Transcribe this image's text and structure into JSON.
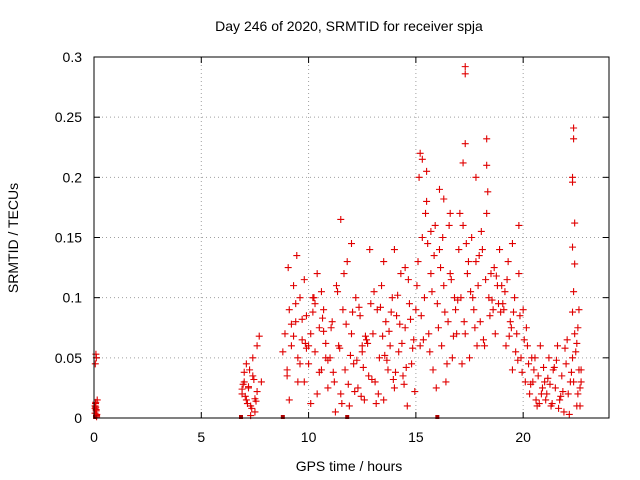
{
  "chart_data": {
    "type": "scatter",
    "title": "Day 246 of 2020, SRMTID for receiver spja",
    "xlabel": "GPS time / hours",
    "ylabel": "SRMTID / TECUs",
    "xlim": [
      0,
      24
    ],
    "ylim": [
      0,
      0.3
    ],
    "x_ticks": [
      0,
      5,
      10,
      15,
      20
    ],
    "x_tick_labels": [
      "0",
      "5",
      "10",
      "15",
      "20"
    ],
    "y_ticks": [
      0,
      0.05,
      0.1,
      0.15,
      0.2,
      0.25,
      0.3
    ],
    "y_tick_labels": [
      "0",
      "0.05",
      "0.1",
      "0.15",
      "0.2",
      "0.25",
      "0.3"
    ],
    "grid": true,
    "marker": "+",
    "color": "#e00000",
    "series": [
      {
        "name": "SRMTID",
        "x": [
          0.05,
          0.05,
          0.08,
          0.1,
          0.12,
          0.06,
          0.09,
          0.11,
          0.15,
          0.07,
          0.1,
          0.13,
          0.08,
          0.12,
          0.05,
          6.9,
          7.0,
          7.1,
          7.2,
          7.3,
          7.4,
          7.5,
          7.6,
          6.95,
          7.05,
          7.15,
          7.25,
          7.35,
          7.45,
          7.55,
          6.9,
          7.1,
          7.3,
          7.5,
          7.0,
          7.2,
          7.4,
          7.6,
          7.7,
          7.8,
          8.8,
          8.9,
          9.0,
          9.1,
          9.2,
          9.3,
          9.4,
          9.5,
          9.6,
          9.7,
          9.8,
          9.9,
          10.0,
          10.1,
          10.2,
          10.3,
          10.4,
          10.5,
          10.6,
          10.7,
          10.8,
          10.9,
          9.0,
          9.2,
          9.4,
          9.6,
          9.8,
          10.0,
          10.2,
          10.4,
          10.6,
          10.8,
          9.1,
          9.3,
          9.5,
          9.7,
          9.9,
          10.1,
          10.3,
          10.5,
          10.7,
          10.9,
          9.05,
          9.45,
          9.85,
          10.25,
          10.65,
          11.0,
          11.1,
          11.2,
          11.3,
          11.4,
          11.5,
          11.6,
          11.7,
          11.8,
          11.9,
          12.0,
          12.1,
          12.2,
          12.3,
          12.4,
          12.5,
          12.6,
          12.7,
          12.8,
          12.9,
          11.05,
          11.25,
          11.45,
          11.65,
          11.85,
          12.05,
          12.25,
          12.45,
          12.65,
          12.85,
          11.15,
          11.35,
          11.55,
          11.75,
          11.95,
          12.15,
          12.35,
          12.55,
          12.75,
          12.95,
          11.5,
          12.0,
          12.5,
          13.0,
          13.1,
          13.2,
          13.3,
          13.4,
          13.5,
          13.6,
          13.7,
          13.8,
          13.9,
          14.0,
          14.1,
          14.2,
          14.3,
          14.4,
          14.5,
          14.6,
          14.7,
          14.8,
          14.9,
          13.05,
          13.25,
          13.45,
          13.65,
          13.85,
          14.05,
          14.25,
          14.45,
          14.65,
          14.85,
          13.15,
          13.35,
          13.55,
          13.75,
          13.95,
          14.15,
          14.35,
          14.55,
          14.75,
          14.95,
          13.5,
          14.0,
          14.5,
          15.0,
          15.1,
          15.2,
          15.3,
          15.4,
          15.5,
          15.6,
          15.7,
          15.8,
          15.9,
          16.0,
          16.1,
          16.2,
          16.3,
          16.4,
          16.5,
          16.6,
          16.7,
          16.8,
          16.9,
          15.05,
          15.25,
          15.45,
          15.65,
          15.85,
          16.05,
          16.25,
          16.45,
          16.65,
          16.85,
          15.15,
          15.35,
          15.55,
          15.75,
          15.95,
          16.15,
          16.35,
          16.55,
          16.75,
          16.95,
          15.2,
          15.5,
          16.1,
          16.6,
          15.3,
          15.7,
          16.3,
          17.0,
          17.1,
          17.2,
          17.3,
          17.4,
          17.5,
          17.6,
          17.7,
          17.8,
          17.9,
          18.0,
          18.1,
          18.2,
          18.3,
          18.4,
          18.5,
          18.6,
          18.7,
          18.8,
          18.9,
          17.05,
          17.25,
          17.45,
          17.65,
          17.85,
          18.05,
          18.25,
          18.45,
          18.65,
          18.85,
          17.15,
          17.35,
          17.55,
          17.75,
          17.95,
          18.15,
          18.35,
          18.55,
          18.75,
          18.95,
          17.3,
          17.3,
          17.3,
          18.3,
          18.3,
          17.2,
          17.8,
          19.0,
          19.1,
          19.2,
          19.3,
          19.4,
          19.5,
          19.6,
          19.7,
          19.8,
          19.9,
          20.0,
          20.1,
          20.2,
          20.3,
          20.4,
          20.5,
          20.6,
          20.7,
          20.8,
          20.9,
          19.05,
          19.25,
          19.45,
          19.65,
          19.85,
          20.05,
          20.25,
          20.45,
          20.65,
          20.85,
          19.15,
          19.35,
          19.55,
          19.75,
          19.95,
          20.15,
          20.35,
          20.55,
          20.75,
          20.95,
          19.5,
          19.8,
          21.0,
          21.1,
          21.2,
          21.3,
          21.4,
          21.5,
          21.6,
          21.7,
          21.8,
          21.9,
          22.0,
          22.1,
          22.2,
          22.3,
          22.4,
          22.5,
          22.6,
          22.7,
          21.05,
          21.25,
          21.45,
          21.65,
          21.85,
          22.05,
          22.25,
          22.45,
          22.65,
          21.15,
          21.35,
          21.55,
          21.75,
          21.95,
          22.15,
          22.35,
          22.55,
          22.3,
          22.3,
          22.35,
          22.35,
          22.4,
          22.3,
          22.4,
          22.35,
          22.3,
          22.5,
          22.6,
          22.7,
          22.55,
          22.65
        ],
        "y": [
          0.004,
          0.01,
          0.013,
          0.007,
          0.002,
          0.045,
          0.053,
          0.05,
          0.015,
          0.012,
          0.006,
          0.003,
          0.009,
          0.001,
          0.008,
          0.02,
          0.03,
          0.015,
          0.025,
          0.01,
          0.035,
          0.005,
          0.022,
          0.028,
          0.018,
          0.012,
          0.04,
          0.008,
          0.032,
          0.014,
          0.024,
          0.045,
          0.002,
          0.016,
          0.038,
          0.026,
          0.05,
          0.06,
          0.068,
          0.03,
          0.055,
          0.07,
          0.04,
          0.09,
          0.06,
          0.11,
          0.08,
          0.05,
          0.1,
          0.065,
          0.03,
          0.085,
          0.045,
          0.07,
          0.1,
          0.055,
          0.12,
          0.075,
          0.04,
          0.09,
          0.062,
          0.025,
          0.035,
          0.078,
          0.095,
          0.045,
          0.115,
          0.06,
          0.088,
          0.02,
          0.105,
          0.05,
          0.015,
          0.068,
          0.03,
          0.082,
          0.058,
          0.012,
          0.095,
          0.038,
          0.072,
          0.048,
          0.125,
          0.135,
          0.062,
          0.1,
          0.083,
          0.05,
          0.08,
          0.03,
          0.11,
          0.06,
          0.02,
          0.09,
          0.04,
          0.13,
          0.01,
          0.07,
          0.045,
          0.1,
          0.025,
          0.085,
          0.055,
          0.015,
          0.065,
          0.035,
          0.095,
          0.075,
          0.005,
          0.058,
          0.12,
          0.028,
          0.088,
          0.048,
          0.018,
          0.068,
          0.14,
          0.038,
          0.105,
          0.012,
          0.078,
          0.052,
          0.022,
          0.092,
          0.042,
          0.062,
          0.032,
          0.165,
          0.145,
          0.06,
          0.07,
          0.03,
          0.09,
          0.05,
          0.11,
          0.015,
          0.08,
          0.04,
          0.06,
          0.1,
          0.025,
          0.085,
          0.055,
          0.12,
          0.035,
          0.075,
          0.01,
          0.095,
          0.045,
          0.065,
          0.105,
          0.02,
          0.068,
          0.048,
          0.088,
          0.038,
          0.078,
          0.028,
          0.115,
          0.058,
          0.012,
          0.092,
          0.052,
          0.072,
          0.032,
          0.102,
          0.062,
          0.042,
          0.082,
          0.022,
          0.13,
          0.14,
          0.125,
          0.09,
          0.13,
          0.06,
          0.15,
          0.1,
          0.18,
          0.07,
          0.12,
          0.04,
          0.16,
          0.095,
          0.14,
          0.06,
          0.11,
          0.03,
          0.08,
          0.12,
          0.05,
          0.1,
          0.07,
          0.11,
          0.085,
          0.17,
          0.055,
          0.135,
          0.075,
          0.15,
          0.045,
          0.115,
          0.09,
          0.2,
          0.065,
          0.145,
          0.105,
          0.025,
          0.125,
          0.088,
          0.16,
          0.068,
          0.098,
          0.22,
          0.205,
          0.19,
          0.17,
          0.215,
          0.155,
          0.182,
          0.14,
          0.1,
          0.16,
          0.07,
          0.12,
          0.05,
          0.15,
          0.09,
          0.13,
          0.11,
          0.08,
          0.14,
          0.06,
          0.17,
          0.1,
          0.12,
          0.09,
          0.07,
          0.11,
          0.14,
          0.17,
          0.08,
          0.13,
          0.1,
          0.06,
          0.155,
          0.115,
          0.085,
          0.125,
          0.095,
          0.045,
          0.145,
          0.105,
          0.075,
          0.135,
          0.065,
          0.188,
          0.098,
          0.118,
          0.088,
          0.228,
          0.292,
          0.286,
          0.232,
          0.21,
          0.212,
          0.2,
          0.11,
          0.09,
          0.06,
          0.13,
          0.08,
          0.04,
          0.1,
          0.07,
          0.12,
          0.05,
          0.09,
          0.03,
          0.06,
          0.02,
          0.05,
          0.04,
          0.015,
          0.035,
          0.06,
          0.025,
          0.095,
          0.115,
          0.075,
          0.055,
          0.085,
          0.065,
          0.045,
          0.03,
          0.01,
          0.02,
          0.105,
          0.068,
          0.088,
          0.048,
          0.038,
          0.075,
          0.028,
          0.05,
          0.012,
          0.042,
          0.145,
          0.16,
          0.03,
          0.02,
          0.05,
          0.01,
          0.04,
          0.025,
          0.06,
          0.015,
          0.035,
          0.005,
          0.045,
          0.02,
          0.03,
          0.05,
          0.07,
          0.01,
          0.09,
          0.04,
          0.015,
          0.028,
          0.042,
          0.008,
          0.022,
          0.065,
          0.038,
          0.055,
          0.025,
          0.033,
          0.012,
          0.048,
          0.018,
          0.058,
          0.003,
          0.03,
          0.075,
          0.2,
          0.196,
          0.232,
          0.241,
          0.162,
          0.142,
          0.128,
          0.105,
          0.088,
          0.062,
          0.04,
          0.03,
          0.02,
          0.01
        ]
      }
    ],
    "dark_markers_x": [
      0.05,
      6.85,
      8.8,
      11.8,
      16.0
    ]
  }
}
